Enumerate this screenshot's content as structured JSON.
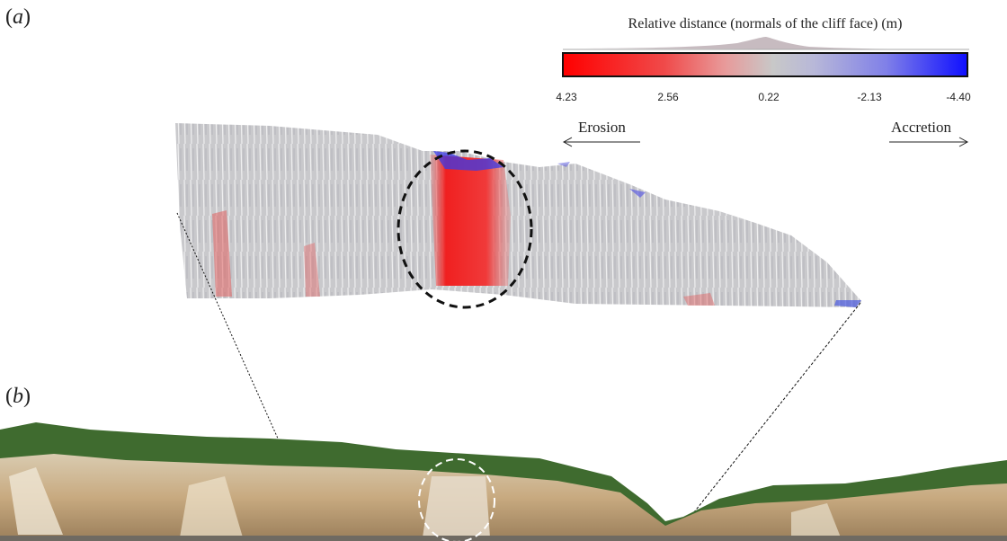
{
  "panels": {
    "a_letter": "a",
    "b_letter": "b"
  },
  "colorbar": {
    "title": "Relative distance (normals of the cliff face) (m)",
    "ticks": [
      "4.23",
      "2.56",
      "0.22",
      "-2.13",
      "-4.40"
    ],
    "colors": {
      "high": "#ff0000",
      "mid": "#c8c8c8",
      "low": "#1010ff"
    }
  },
  "annotations": {
    "left_arrow": "Erosion",
    "right_arrow": "Accretion"
  }
}
